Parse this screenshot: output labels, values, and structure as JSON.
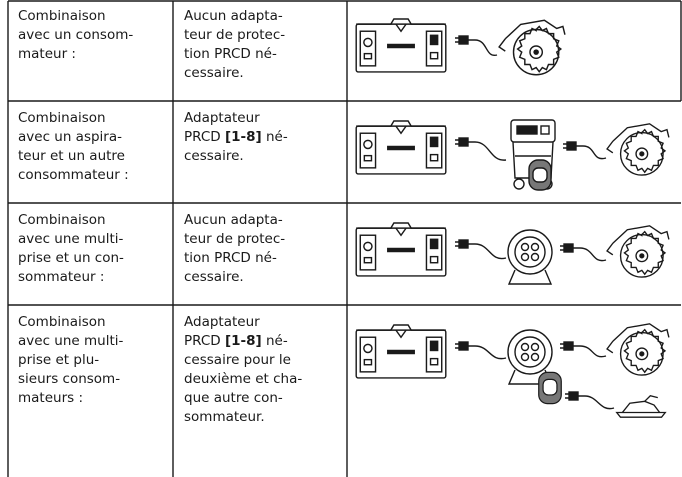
{
  "table": {
    "rows": [
      {
        "combination": [
          "Combinaison",
          "avec un consom-",
          "mateur :"
        ],
        "requirement": [
          [
            "Aucun adapta-"
          ],
          [
            "teur de protec-"
          ],
          [
            "tion PRCD né-"
          ],
          [
            "cessaire."
          ]
        ]
      },
      {
        "combination": [
          "Combinaison",
          "avec un aspira-",
          "teur et un autre",
          "consommateur :"
        ],
        "requirement": [
          [
            "Adaptateur"
          ],
          [
            "PRCD ",
            "[1-8]",
            " né-"
          ],
          [
            "cessaire."
          ]
        ]
      },
      {
        "combination": [
          "Combinaison",
          "avec une multi-",
          "prise et un con-",
          "sommateur :"
        ],
        "requirement": [
          [
            "Aucun adapta-"
          ],
          [
            "teur de protec-"
          ],
          [
            "tion PRCD né-"
          ],
          [
            "cessaire."
          ]
        ]
      },
      {
        "combination": [
          "Combinaison",
          "avec une multi-",
          "prise et plu-",
          "sieurs consom-",
          "mateurs :"
        ],
        "requirement": [
          [
            "Adaptateur"
          ],
          [
            "PRCD ",
            "[1-8]",
            " né-"
          ],
          [
            "cessaire pour le"
          ],
          [
            "deuxième et cha-"
          ],
          [
            "que autre con-"
          ],
          [
            "sommateur."
          ]
        ]
      }
    ]
  }
}
